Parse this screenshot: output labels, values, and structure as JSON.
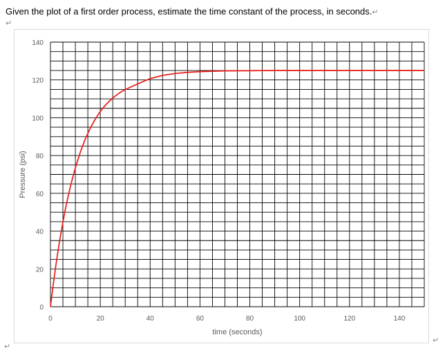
{
  "question": {
    "text": "Given the plot of a first order process, estimate the time constant of the process, in seconds.",
    "return_mark": "↵"
  },
  "chart_data": {
    "type": "line",
    "xlabel": "time (seconds)",
    "ylabel": "Pressure (psi)",
    "xlim": [
      0,
      150
    ],
    "ylim": [
      0,
      140
    ],
    "x_ticks": [
      0,
      20,
      40,
      60,
      80,
      100,
      120,
      140
    ],
    "y_ticks": [
      0,
      20,
      40,
      60,
      80,
      100,
      120,
      140
    ],
    "x_minor_step": 5,
    "y_minor_step": 5,
    "grid": true,
    "series": [
      {
        "color": "#e8221f",
        "x": [
          0,
          1,
          2,
          3,
          4,
          5,
          6,
          7,
          8,
          9,
          10,
          12,
          14,
          16,
          18,
          20,
          22,
          25,
          28,
          30,
          35,
          40,
          45,
          50,
          55,
          60,
          70,
          80,
          90,
          100,
          110,
          120,
          130,
          140,
          150
        ],
        "y": [
          0,
          10.6,
          20.3,
          29.2,
          37.3,
          44.8,
          51.6,
          57.8,
          63.5,
          68.7,
          73.5,
          81.8,
          88.8,
          94.5,
          99.3,
          103.3,
          106.6,
          110.5,
          113.4,
          114.9,
          117.9,
          120.7,
          122.4,
          123.4,
          124.0,
          124.4,
          124.8,
          124.9,
          125,
          125,
          125,
          125,
          125,
          125,
          125
        ]
      }
    ]
  },
  "colors": {
    "curve": "#e8221f",
    "grid": "#000000",
    "tick_text": "#595959",
    "chart_border": "#d9d9d9"
  }
}
